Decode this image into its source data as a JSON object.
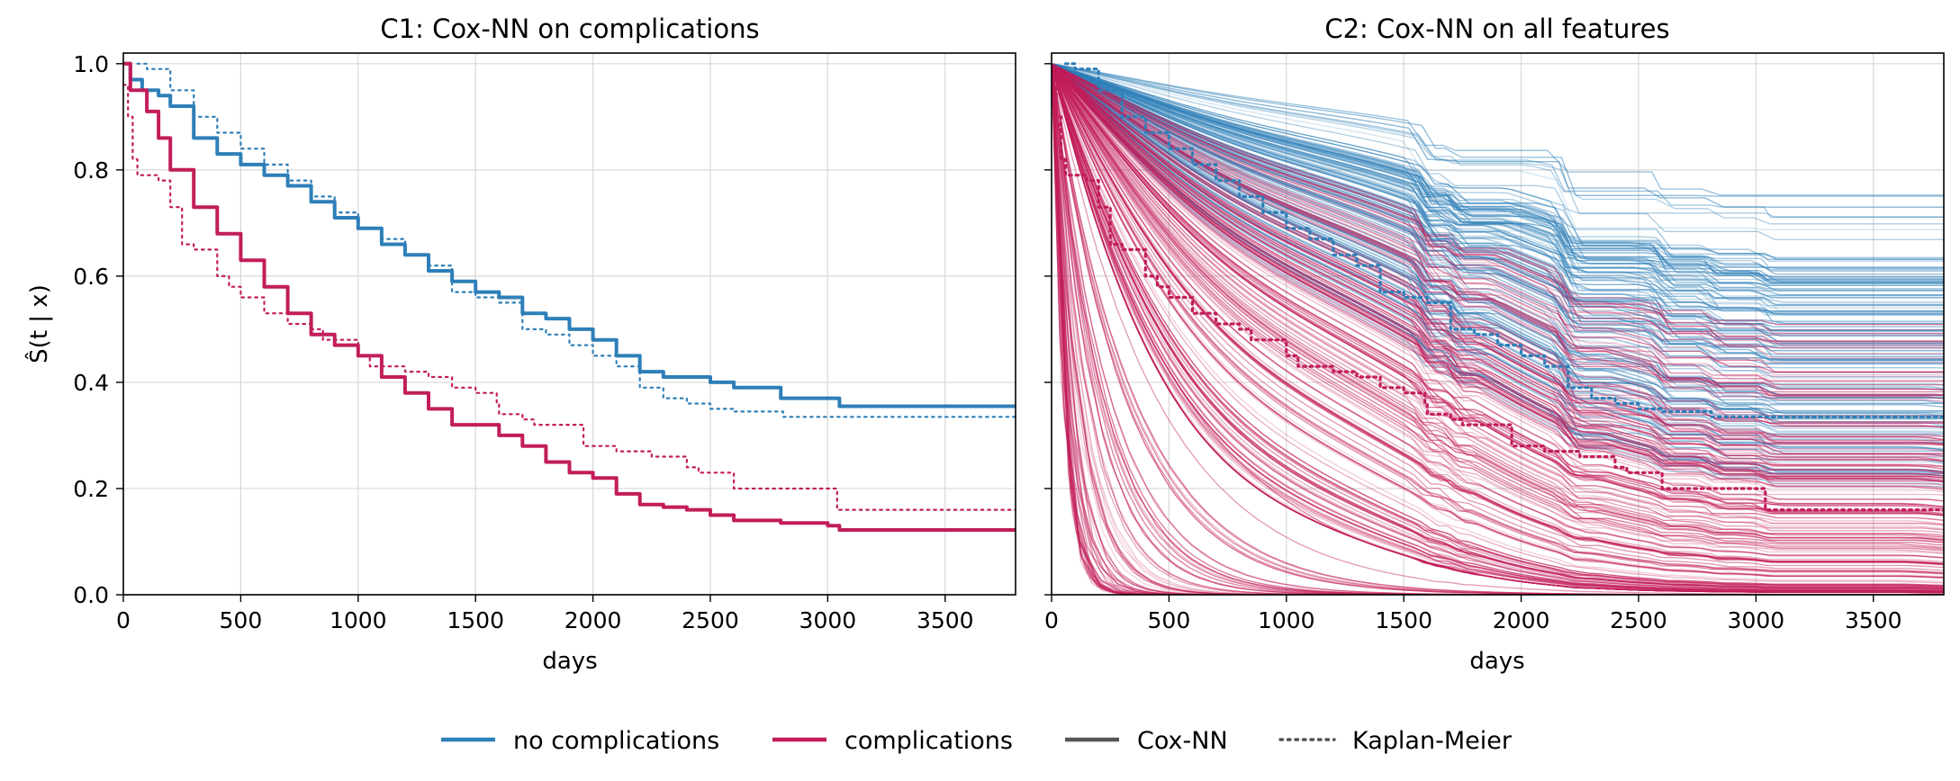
{
  "chart_data": [
    {
      "type": "line",
      "title": "C1: Cox-NN on complications",
      "xlabel": "days",
      "ylabel": "Ŝ(t | x)",
      "xlim": [
        0,
        3800
      ],
      "ylim": [
        0,
        1.02
      ],
      "xticks": [
        "0",
        "500",
        "1000",
        "1500",
        "2000",
        "2500",
        "3000",
        "3500"
      ],
      "yticks": [
        "0.0",
        "0.2",
        "0.4",
        "0.6",
        "0.8",
        "1.0"
      ],
      "grid": true,
      "series": [
        {
          "name": "no complications",
          "method": "Cox-NN",
          "color": "#2e7fb8",
          "points": [
            [
              0,
              1.0
            ],
            [
              30,
              0.97
            ],
            [
              80,
              0.95
            ],
            [
              150,
              0.94
            ],
            [
              200,
              0.92
            ],
            [
              300,
              0.86
            ],
            [
              400,
              0.83
            ],
            [
              500,
              0.81
            ],
            [
              600,
              0.79
            ],
            [
              700,
              0.77
            ],
            [
              800,
              0.74
            ],
            [
              900,
              0.71
            ],
            [
              1000,
              0.69
            ],
            [
              1100,
              0.66
            ],
            [
              1200,
              0.64
            ],
            [
              1300,
              0.61
            ],
            [
              1400,
              0.59
            ],
            [
              1500,
              0.57
            ],
            [
              1600,
              0.56
            ],
            [
              1700,
              0.53
            ],
            [
              1800,
              0.52
            ],
            [
              1900,
              0.5
            ],
            [
              2000,
              0.48
            ],
            [
              2100,
              0.45
            ],
            [
              2200,
              0.42
            ],
            [
              2300,
              0.41
            ],
            [
              2400,
              0.41
            ],
            [
              2500,
              0.4
            ],
            [
              2600,
              0.39
            ],
            [
              2800,
              0.37
            ],
            [
              3000,
              0.37
            ],
            [
              3050,
              0.355
            ],
            [
              3800,
              0.355
            ]
          ]
        },
        {
          "name": "no complications",
          "method": "Kaplan-Meier",
          "color": "#2e7fb8",
          "points": [
            [
              60,
              1.0
            ],
            [
              100,
              0.99
            ],
            [
              200,
              0.95
            ],
            [
              300,
              0.9
            ],
            [
              400,
              0.87
            ],
            [
              500,
              0.84
            ],
            [
              600,
              0.81
            ],
            [
              700,
              0.78
            ],
            [
              800,
              0.75
            ],
            [
              900,
              0.72
            ],
            [
              1000,
              0.69
            ],
            [
              1100,
              0.67
            ],
            [
              1200,
              0.64
            ],
            [
              1300,
              0.62
            ],
            [
              1400,
              0.57
            ],
            [
              1500,
              0.56
            ],
            [
              1600,
              0.55
            ],
            [
              1700,
              0.5
            ],
            [
              1800,
              0.49
            ],
            [
              1900,
              0.47
            ],
            [
              2000,
              0.45
            ],
            [
              2100,
              0.43
            ],
            [
              2200,
              0.39
            ],
            [
              2300,
              0.37
            ],
            [
              2400,
              0.36
            ],
            [
              2500,
              0.35
            ],
            [
              2600,
              0.345
            ],
            [
              2800,
              0.345
            ],
            [
              2810,
              0.335
            ],
            [
              3800,
              0.335
            ]
          ]
        },
        {
          "name": "complications",
          "method": "Cox-NN",
          "color": "#c21d5a",
          "points": [
            [
              0,
              1.0
            ],
            [
              30,
              0.95
            ],
            [
              100,
              0.91
            ],
            [
              150,
              0.86
            ],
            [
              200,
              0.8
            ],
            [
              300,
              0.73
            ],
            [
              400,
              0.68
            ],
            [
              500,
              0.63
            ],
            [
              600,
              0.58
            ],
            [
              700,
              0.53
            ],
            [
              800,
              0.49
            ],
            [
              900,
              0.47
            ],
            [
              1000,
              0.45
            ],
            [
              1100,
              0.41
            ],
            [
              1200,
              0.38
            ],
            [
              1300,
              0.35
            ],
            [
              1400,
              0.32
            ],
            [
              1500,
              0.32
            ],
            [
              1600,
              0.3
            ],
            [
              1700,
              0.28
            ],
            [
              1800,
              0.25
            ],
            [
              1900,
              0.23
            ],
            [
              2000,
              0.22
            ],
            [
              2100,
              0.19
            ],
            [
              2200,
              0.17
            ],
            [
              2300,
              0.165
            ],
            [
              2400,
              0.16
            ],
            [
              2500,
              0.15
            ],
            [
              2600,
              0.14
            ],
            [
              2800,
              0.135
            ],
            [
              3000,
              0.13
            ],
            [
              3050,
              0.122
            ],
            [
              3800,
              0.122
            ]
          ]
        },
        {
          "name": "complications",
          "method": "Kaplan-Meier",
          "color": "#c21d5a",
          "points": [
            [
              0,
              0.96
            ],
            [
              20,
              0.9
            ],
            [
              40,
              0.82
            ],
            [
              60,
              0.79
            ],
            [
              150,
              0.78
            ],
            [
              200,
              0.73
            ],
            [
              250,
              0.66
            ],
            [
              300,
              0.65
            ],
            [
              400,
              0.6
            ],
            [
              450,
              0.58
            ],
            [
              500,
              0.56
            ],
            [
              600,
              0.53
            ],
            [
              700,
              0.51
            ],
            [
              800,
              0.5
            ],
            [
              850,
              0.48
            ],
            [
              1000,
              0.45
            ],
            [
              1050,
              0.43
            ],
            [
              1200,
              0.42
            ],
            [
              1300,
              0.41
            ],
            [
              1400,
              0.39
            ],
            [
              1500,
              0.38
            ],
            [
              1590,
              0.36
            ],
            [
              1600,
              0.34
            ],
            [
              1700,
              0.33
            ],
            [
              1750,
              0.32
            ],
            [
              1950,
              0.32
            ],
            [
              1960,
              0.28
            ],
            [
              2100,
              0.27
            ],
            [
              2250,
              0.26
            ],
            [
              2400,
              0.24
            ],
            [
              2450,
              0.23
            ],
            [
              2600,
              0.2
            ],
            [
              2700,
              0.2
            ],
            [
              3040,
              0.16
            ],
            [
              3800,
              0.16
            ]
          ]
        }
      ]
    },
    {
      "type": "line",
      "title": "C2: Cox-NN on all features",
      "xlabel": "days",
      "xlim": [
        0,
        3800
      ],
      "ylim": [
        0,
        1.02
      ],
      "xticks": [
        "0",
        "500",
        "1000",
        "1500",
        "2000",
        "2500",
        "3000",
        "3500"
      ],
      "grid": true,
      "individual_curves": {
        "no_complications": {
          "color": "#2e7fb8",
          "final_survival_range": [
            0.2,
            0.65
          ],
          "count_approx": 140
        },
        "complications": {
          "color": "#c21d5a",
          "final_survival_range": [
            0.0,
            0.5
          ],
          "count_approx": 260
        }
      },
      "series": [
        {
          "name": "no complications",
          "method": "Kaplan-Meier",
          "color": "#2e7fb8",
          "points": [
            [
              60,
              1.0
            ],
            [
              100,
              0.99
            ],
            [
              200,
              0.95
            ],
            [
              300,
              0.9
            ],
            [
              400,
              0.87
            ],
            [
              500,
              0.84
            ],
            [
              600,
              0.81
            ],
            [
              700,
              0.78
            ],
            [
              800,
              0.75
            ],
            [
              900,
              0.72
            ],
            [
              1000,
              0.69
            ],
            [
              1100,
              0.67
            ],
            [
              1200,
              0.64
            ],
            [
              1300,
              0.62
            ],
            [
              1400,
              0.57
            ],
            [
              1500,
              0.56
            ],
            [
              1600,
              0.55
            ],
            [
              1700,
              0.5
            ],
            [
              1800,
              0.49
            ],
            [
              1900,
              0.47
            ],
            [
              2000,
              0.45
            ],
            [
              2100,
              0.43
            ],
            [
              2200,
              0.39
            ],
            [
              2300,
              0.37
            ],
            [
              2400,
              0.36
            ],
            [
              2500,
              0.35
            ],
            [
              2600,
              0.345
            ],
            [
              2800,
              0.345
            ],
            [
              2810,
              0.335
            ],
            [
              3800,
              0.335
            ]
          ]
        },
        {
          "name": "complications",
          "method": "Kaplan-Meier",
          "color": "#c21d5a",
          "points": [
            [
              0,
              0.96
            ],
            [
              20,
              0.9
            ],
            [
              40,
              0.82
            ],
            [
              60,
              0.79
            ],
            [
              150,
              0.78
            ],
            [
              200,
              0.73
            ],
            [
              250,
              0.66
            ],
            [
              300,
              0.65
            ],
            [
              400,
              0.6
            ],
            [
              450,
              0.58
            ],
            [
              500,
              0.56
            ],
            [
              600,
              0.53
            ],
            [
              700,
              0.51
            ],
            [
              800,
              0.5
            ],
            [
              850,
              0.48
            ],
            [
              1000,
              0.45
            ],
            [
              1050,
              0.43
            ],
            [
              1200,
              0.42
            ],
            [
              1300,
              0.41
            ],
            [
              1400,
              0.39
            ],
            [
              1500,
              0.38
            ],
            [
              1590,
              0.36
            ],
            [
              1600,
              0.34
            ],
            [
              1700,
              0.33
            ],
            [
              1750,
              0.32
            ],
            [
              1950,
              0.32
            ],
            [
              1960,
              0.28
            ],
            [
              2100,
              0.27
            ],
            [
              2250,
              0.26
            ],
            [
              2400,
              0.24
            ],
            [
              2450,
              0.23
            ],
            [
              2600,
              0.2
            ],
            [
              2700,
              0.2
            ],
            [
              3040,
              0.16
            ],
            [
              3800,
              0.16
            ]
          ]
        }
      ]
    }
  ],
  "legend": {
    "placement": "bottom-center",
    "entries": [
      {
        "label": "no complications",
        "color": "#2e7fb8",
        "style": "solid"
      },
      {
        "label": "complications",
        "color": "#c21d5a",
        "style": "solid"
      },
      {
        "label": "Cox-NN",
        "color": "#555555",
        "style": "solid"
      },
      {
        "label": "Kaplan-Meier",
        "color": "#555555",
        "style": "dotted"
      }
    ]
  }
}
